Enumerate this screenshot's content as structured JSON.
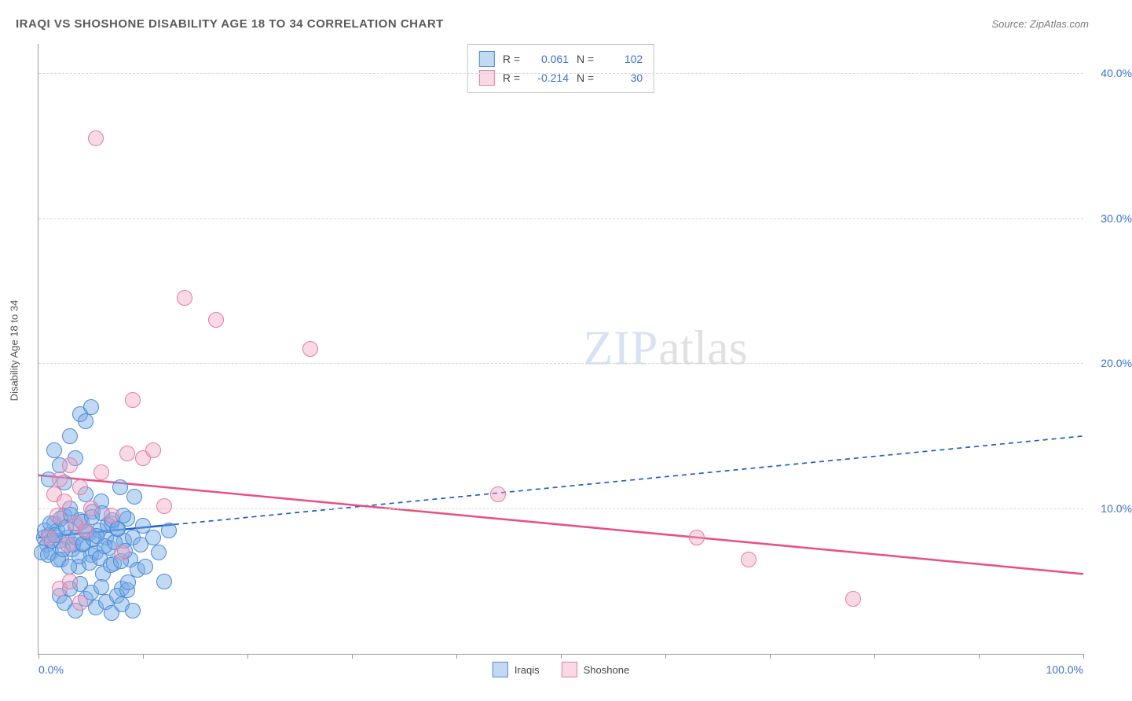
{
  "header": {
    "title": "IRAQI VS SHOSHONE DISABILITY AGE 18 TO 34 CORRELATION CHART",
    "source": "Source: ZipAtlas.com"
  },
  "yaxis": {
    "label": "Disability Age 18 to 34"
  },
  "chart": {
    "type": "scatter",
    "xlim": [
      0,
      100
    ],
    "ylim": [
      0,
      42
    ],
    "x_ticks": [
      0,
      10,
      20,
      30,
      40,
      50,
      60,
      70,
      80,
      90,
      100
    ],
    "x_tick_labels": {
      "0": "0.0%",
      "100": "100.0%"
    },
    "y_gridlines": [
      10,
      20,
      30,
      40
    ],
    "y_tick_labels": {
      "10": "10.0%",
      "20": "20.0%",
      "30": "30.0%",
      "40": "40.0%"
    },
    "background_color": "#ffffff",
    "grid_color": "#d8d8d8",
    "axis_color": "#999999",
    "tick_label_color": "#3b6fd6",
    "point_radius": 9,
    "series": [
      {
        "name": "Iraqis",
        "fill": "rgba(120,170,230,0.45)",
        "stroke": "#4a8bd6",
        "trend": {
          "y_at_x0": 8.0,
          "y_at_x100": 15.0,
          "color": "#1f5fc9",
          "solid_until_x": 13,
          "width": 2.5,
          "dash": "6 5"
        },
        "R": "0.061",
        "N": "102",
        "points": [
          [
            0.5,
            8.0
          ],
          [
            0.8,
            7.5
          ],
          [
            1.0,
            8.2
          ],
          [
            1.2,
            7.0
          ],
          [
            1.5,
            9.0
          ],
          [
            1.8,
            8.5
          ],
          [
            2.0,
            7.8
          ],
          [
            2.2,
            6.5
          ],
          [
            2.5,
            9.5
          ],
          [
            2.8,
            8.0
          ],
          [
            3.0,
            10.0
          ],
          [
            3.2,
            7.2
          ],
          [
            3.5,
            8.8
          ],
          [
            3.8,
            6.0
          ],
          [
            4.0,
            9.2
          ],
          [
            4.2,
            7.5
          ],
          [
            4.5,
            11.0
          ],
          [
            4.8,
            8.3
          ],
          [
            5.0,
            6.8
          ],
          [
            5.2,
            9.8
          ],
          [
            5.5,
            7.0
          ],
          [
            5.8,
            8.5
          ],
          [
            6.0,
            10.5
          ],
          [
            6.2,
            5.5
          ],
          [
            6.5,
            8.0
          ],
          [
            6.8,
            7.3
          ],
          [
            7.0,
            9.0
          ],
          [
            7.2,
            6.2
          ],
          [
            7.5,
            8.6
          ],
          [
            7.8,
            11.5
          ],
          [
            8.0,
            4.5
          ],
          [
            8.2,
            7.8
          ],
          [
            8.5,
            9.3
          ],
          [
            8.8,
            6.5
          ],
          [
            9.0,
            8.0
          ],
          [
            9.2,
            10.8
          ],
          [
            9.5,
            5.8
          ],
          [
            9.8,
            7.5
          ],
          [
            10.0,
            8.8
          ],
          [
            10.2,
            6.0
          ],
          [
            1.0,
            12.0
          ],
          [
            1.5,
            14.0
          ],
          [
            2.0,
            13.0
          ],
          [
            2.5,
            11.8
          ],
          [
            3.0,
            15.0
          ],
          [
            3.5,
            13.5
          ],
          [
            4.0,
            16.5
          ],
          [
            4.5,
            16.0
          ],
          [
            5.0,
            17.0
          ],
          [
            2.0,
            4.0
          ],
          [
            2.5,
            3.5
          ],
          [
            3.0,
            4.5
          ],
          [
            3.5,
            3.0
          ],
          [
            4.0,
            4.8
          ],
          [
            4.5,
            3.8
          ],
          [
            5.0,
            4.2
          ],
          [
            5.5,
            3.2
          ],
          [
            6.0,
            4.6
          ],
          [
            6.5,
            3.6
          ],
          [
            7.0,
            2.8
          ],
          [
            7.5,
            4.0
          ],
          [
            8.0,
            3.4
          ],
          [
            8.5,
            4.4
          ],
          [
            9.0,
            3.0
          ],
          [
            0.3,
            7.0
          ],
          [
            0.6,
            8.5
          ],
          [
            0.9,
            6.8
          ],
          [
            1.1,
            9.0
          ],
          [
            1.3,
            7.8
          ],
          [
            1.6,
            8.2
          ],
          [
            1.9,
            6.5
          ],
          [
            2.1,
            9.3
          ],
          [
            2.3,
            7.2
          ],
          [
            2.6,
            8.7
          ],
          [
            2.9,
            6.0
          ],
          [
            3.1,
            9.6
          ],
          [
            3.3,
            7.5
          ],
          [
            3.6,
            8.0
          ],
          [
            3.9,
            6.7
          ],
          [
            4.1,
            9.1
          ],
          [
            4.3,
            7.6
          ],
          [
            4.6,
            8.4
          ],
          [
            4.9,
            6.3
          ],
          [
            5.1,
            9.4
          ],
          [
            5.3,
            7.9
          ],
          [
            5.6,
            8.1
          ],
          [
            5.9,
            6.6
          ],
          [
            6.1,
            9.7
          ],
          [
            6.3,
            7.4
          ],
          [
            6.6,
            8.9
          ],
          [
            6.9,
            6.1
          ],
          [
            7.1,
            9.2
          ],
          [
            7.3,
            7.7
          ],
          [
            7.6,
            8.6
          ],
          [
            7.9,
            6.4
          ],
          [
            8.1,
            9.5
          ],
          [
            8.3,
            7.1
          ],
          [
            8.6,
            4.9
          ],
          [
            11.0,
            8.0
          ],
          [
            11.5,
            7.0
          ],
          [
            12.0,
            5.0
          ],
          [
            12.5,
            8.5
          ]
        ]
      },
      {
        "name": "Shoshone",
        "fill": "rgba(240,160,190,0.40)",
        "stroke": "#e57ba5",
        "trend": {
          "y_at_x0": 12.3,
          "y_at_x100": 5.5,
          "color": "#e94f84",
          "solid_until_x": 100,
          "width": 2.5,
          "dash": ""
        },
        "R": "-0.214",
        "N": "30",
        "points": [
          [
            1.5,
            11.0
          ],
          [
            2.0,
            12.0
          ],
          [
            2.5,
            10.5
          ],
          [
            3.0,
            13.0
          ],
          [
            3.5,
            9.0
          ],
          [
            4.0,
            11.5
          ],
          [
            4.5,
            8.5
          ],
          [
            5.0,
            10.0
          ],
          [
            6.0,
            12.5
          ],
          [
            7.0,
            9.5
          ],
          [
            8.0,
            7.0
          ],
          [
            8.5,
            13.8
          ],
          [
            9.0,
            17.5
          ],
          [
            10.0,
            13.5
          ],
          [
            11.0,
            14.0
          ],
          [
            12.0,
            10.2
          ],
          [
            5.5,
            35.5
          ],
          [
            14.0,
            24.5
          ],
          [
            17.0,
            23.0
          ],
          [
            26.0,
            21.0
          ],
          [
            44.0,
            11.0
          ],
          [
            63.0,
            8.0
          ],
          [
            68.0,
            6.5
          ],
          [
            78.0,
            3.8
          ],
          [
            2.0,
            4.5
          ],
          [
            3.0,
            5.0
          ],
          [
            4.0,
            3.5
          ],
          [
            1.0,
            8.0
          ],
          [
            1.8,
            9.5
          ],
          [
            2.8,
            7.5
          ]
        ]
      }
    ]
  },
  "stats_box": {
    "rows": [
      {
        "swatch_fill": "rgba(120,170,230,0.45)",
        "swatch_stroke": "#4a8bd6",
        "R": "0.061",
        "N": "102"
      },
      {
        "swatch_fill": "rgba(240,160,190,0.40)",
        "swatch_stroke": "#e57ba5",
        "R": "-0.214",
        "N": "30"
      }
    ]
  },
  "bottom_legend": [
    {
      "swatch_fill": "rgba(120,170,230,0.45)",
      "swatch_stroke": "#4a8bd6",
      "label": "Iraqis"
    },
    {
      "swatch_fill": "rgba(240,160,190,0.40)",
      "swatch_stroke": "#e57ba5",
      "label": "Shoshone"
    }
  ],
  "watermark": {
    "zip": "ZIP",
    "atlas": "atlas"
  }
}
